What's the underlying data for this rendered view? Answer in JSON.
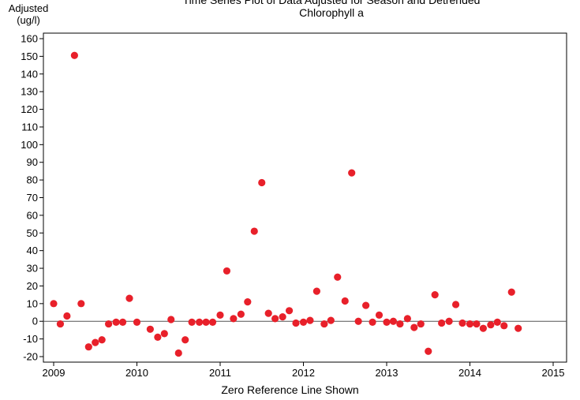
{
  "chart_data": {
    "type": "scatter",
    "title_line1": "Time Series Plot of Data Adjusted for Season and Detrended",
    "title_line2": "Chlorophyll a",
    "ylabel_line1": "Adjusted",
    "ylabel_line2": "(ug/l)",
    "xlabel": "Zero Reference Line Shown",
    "xlim": [
      2009,
      2015
    ],
    "ylim": [
      -20,
      160
    ],
    "x_ticks": [
      2009,
      2010,
      2011,
      2012,
      2013,
      2014,
      2015
    ],
    "y_ticks": [
      -20,
      -10,
      0,
      10,
      20,
      30,
      40,
      50,
      60,
      70,
      80,
      90,
      100,
      110,
      120,
      130,
      140,
      150,
      160
    ],
    "reference_line_y": 0,
    "point_color": "#e8202a",
    "points": [
      {
        "x": 2009.0,
        "y": 10
      },
      {
        "x": 2009.08,
        "y": -1.5
      },
      {
        "x": 2009.16,
        "y": 3
      },
      {
        "x": 2009.25,
        "y": 150.5
      },
      {
        "x": 2009.33,
        "y": 10
      },
      {
        "x": 2009.42,
        "y": -14.5
      },
      {
        "x": 2009.5,
        "y": -12
      },
      {
        "x": 2009.58,
        "y": -10.5
      },
      {
        "x": 2009.66,
        "y": -1.5
      },
      {
        "x": 2009.75,
        "y": -0.5
      },
      {
        "x": 2009.83,
        "y": -0.5
      },
      {
        "x": 2009.91,
        "y": 13
      },
      {
        "x": 2010.0,
        "y": -0.5
      },
      {
        "x": 2010.16,
        "y": -4.5
      },
      {
        "x": 2010.25,
        "y": -9
      },
      {
        "x": 2010.33,
        "y": -7
      },
      {
        "x": 2010.41,
        "y": 1
      },
      {
        "x": 2010.5,
        "y": -18
      },
      {
        "x": 2010.58,
        "y": -10.5
      },
      {
        "x": 2010.66,
        "y": -0.5
      },
      {
        "x": 2010.75,
        "y": -0.5
      },
      {
        "x": 2010.83,
        "y": -0.5
      },
      {
        "x": 2010.91,
        "y": -0.5
      },
      {
        "x": 2011.0,
        "y": 3.5
      },
      {
        "x": 2011.08,
        "y": 28.5
      },
      {
        "x": 2011.16,
        "y": 1.5
      },
      {
        "x": 2011.25,
        "y": 4
      },
      {
        "x": 2011.33,
        "y": 11
      },
      {
        "x": 2011.41,
        "y": 51
      },
      {
        "x": 2011.5,
        "y": 78.5
      },
      {
        "x": 2011.58,
        "y": 4.5
      },
      {
        "x": 2011.66,
        "y": 1.5
      },
      {
        "x": 2011.75,
        "y": 2.5
      },
      {
        "x": 2011.83,
        "y": 6
      },
      {
        "x": 2011.91,
        "y": -1
      },
      {
        "x": 2012.0,
        "y": -0.5
      },
      {
        "x": 2012.08,
        "y": 0.5
      },
      {
        "x": 2012.16,
        "y": 17
      },
      {
        "x": 2012.25,
        "y": -1.5
      },
      {
        "x": 2012.33,
        "y": 0.5
      },
      {
        "x": 2012.41,
        "y": 25
      },
      {
        "x": 2012.5,
        "y": 11.5
      },
      {
        "x": 2012.58,
        "y": 84
      },
      {
        "x": 2012.66,
        "y": 0
      },
      {
        "x": 2012.75,
        "y": 9
      },
      {
        "x": 2012.83,
        "y": -0.5
      },
      {
        "x": 2012.91,
        "y": 3.5
      },
      {
        "x": 2013.0,
        "y": -0.5
      },
      {
        "x": 2013.08,
        "y": 0
      },
      {
        "x": 2013.16,
        "y": -1.5
      },
      {
        "x": 2013.25,
        "y": 1.5
      },
      {
        "x": 2013.33,
        "y": -3.5
      },
      {
        "x": 2013.41,
        "y": -1.5
      },
      {
        "x": 2013.5,
        "y": -17
      },
      {
        "x": 2013.58,
        "y": 15
      },
      {
        "x": 2013.66,
        "y": -1
      },
      {
        "x": 2013.75,
        "y": 0
      },
      {
        "x": 2013.83,
        "y": 9.5
      },
      {
        "x": 2013.91,
        "y": -1
      },
      {
        "x": 2014.0,
        "y": -1.5
      },
      {
        "x": 2014.08,
        "y": -1.5
      },
      {
        "x": 2014.16,
        "y": -4
      },
      {
        "x": 2014.25,
        "y": -2
      },
      {
        "x": 2014.33,
        "y": -0.5
      },
      {
        "x": 2014.41,
        "y": -2.5
      },
      {
        "x": 2014.5,
        "y": 16.5
      },
      {
        "x": 2014.58,
        "y": -4
      }
    ]
  }
}
